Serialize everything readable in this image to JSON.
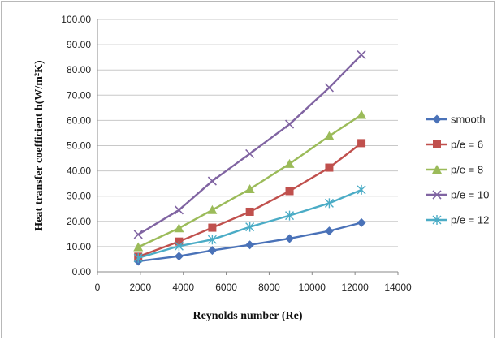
{
  "chart_data": {
    "type": "line",
    "title": "",
    "xlabel": "Reynolds number (Re)",
    "ylabel": "Heat transfer coefficient h(W/m²K)",
    "xlim": [
      0,
      14000
    ],
    "ylim": [
      0,
      100
    ],
    "x_ticks": [
      "0",
      "2000",
      "4000",
      "6000",
      "8000",
      "10000",
      "12000",
      "14000"
    ],
    "y_ticks": [
      "0.00",
      "10.00",
      "20.00",
      "30.00",
      "40.00",
      "50.00",
      "60.00",
      "70.00",
      "80.00",
      "90.00",
      "100.00"
    ],
    "grid": "horizontal",
    "legend_position": "right",
    "series": [
      {
        "name": "smooth",
        "marker": "diamond",
        "color": "#4a72b8",
        "x": [
          1900,
          3800,
          5350,
          7100,
          8950,
          10800,
          12300
        ],
        "values": [
          4.2,
          6.2,
          8.5,
          10.7,
          13.2,
          16.2,
          19.5
        ]
      },
      {
        "name": "p/e = 6",
        "marker": "square",
        "color": "#c0504d",
        "x": [
          1900,
          3800,
          5350,
          7100,
          8950,
          10800,
          12300
        ],
        "values": [
          6.0,
          12.0,
          17.5,
          23.8,
          32.0,
          41.3,
          51.0
        ]
      },
      {
        "name": "p/e = 8",
        "marker": "triangle",
        "color": "#9bbb59",
        "x": [
          1900,
          3800,
          5350,
          7100,
          8950,
          10800,
          12300
        ],
        "values": [
          9.8,
          17.3,
          24.5,
          32.8,
          42.8,
          53.8,
          62.2
        ]
      },
      {
        "name": "p/e = 10",
        "marker": "x",
        "color": "#8064a2",
        "x": [
          1900,
          3800,
          5350,
          7100,
          8950,
          10800,
          12300
        ],
        "values": [
          14.8,
          24.5,
          36.0,
          46.8,
          58.5,
          73.0,
          86.0
        ]
      },
      {
        "name": "p/e = 12",
        "marker": "asterisk",
        "color": "#4bacc6",
        "x": [
          1900,
          3800,
          5350,
          7100,
          8950,
          10800,
          12300
        ],
        "values": [
          5.5,
          10.2,
          12.8,
          17.8,
          22.3,
          27.2,
          32.5
        ]
      }
    ]
  }
}
